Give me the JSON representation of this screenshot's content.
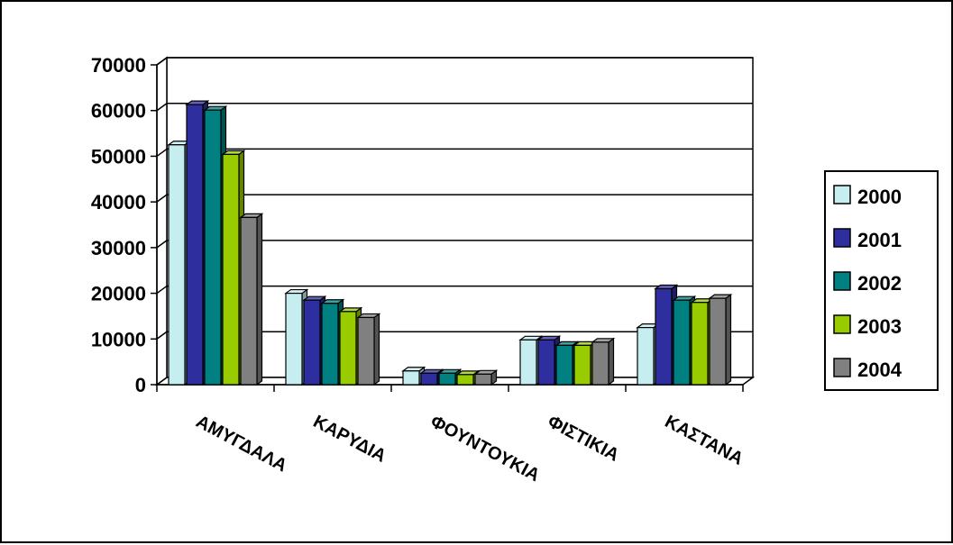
{
  "chart_data": {
    "type": "bar",
    "style": "3d-clustered-column",
    "categories": [
      "ΑΜΥΓΔΑΛΑ",
      "ΚΑΡΥΔΙΑ",
      "ΦΟΥΝΤΟΥΚΙΑ",
      "ΦΙΣΤΙΚΙΑ",
      "ΚΑΣΤΑΝΑ"
    ],
    "series": [
      {
        "name": "2000",
        "color": "#c6eef0",
        "values": [
          52500,
          20000,
          3000,
          9800,
          12500
        ]
      },
      {
        "name": "2001",
        "color": "#2e2e9e",
        "values": [
          61300,
          18500,
          2500,
          9800,
          21000
        ]
      },
      {
        "name": "2002",
        "color": "#008080",
        "values": [
          60100,
          17800,
          2500,
          8600,
          18500
        ]
      },
      {
        "name": "2003",
        "color": "#99cc00",
        "values": [
          50400,
          16000,
          2200,
          8600,
          18000
        ]
      },
      {
        "name": "2004",
        "color": "#808080",
        "values": [
          36600,
          14700,
          2300,
          9300,
          18900
        ]
      }
    ],
    "ylim": [
      0,
      70000
    ],
    "yticks": [
      "0",
      "10000",
      "20000",
      "30000",
      "40000",
      "50000",
      "60000",
      "70000"
    ],
    "grid": true,
    "legend_position": "right",
    "title": "",
    "xlabel": "",
    "ylabel": ""
  }
}
